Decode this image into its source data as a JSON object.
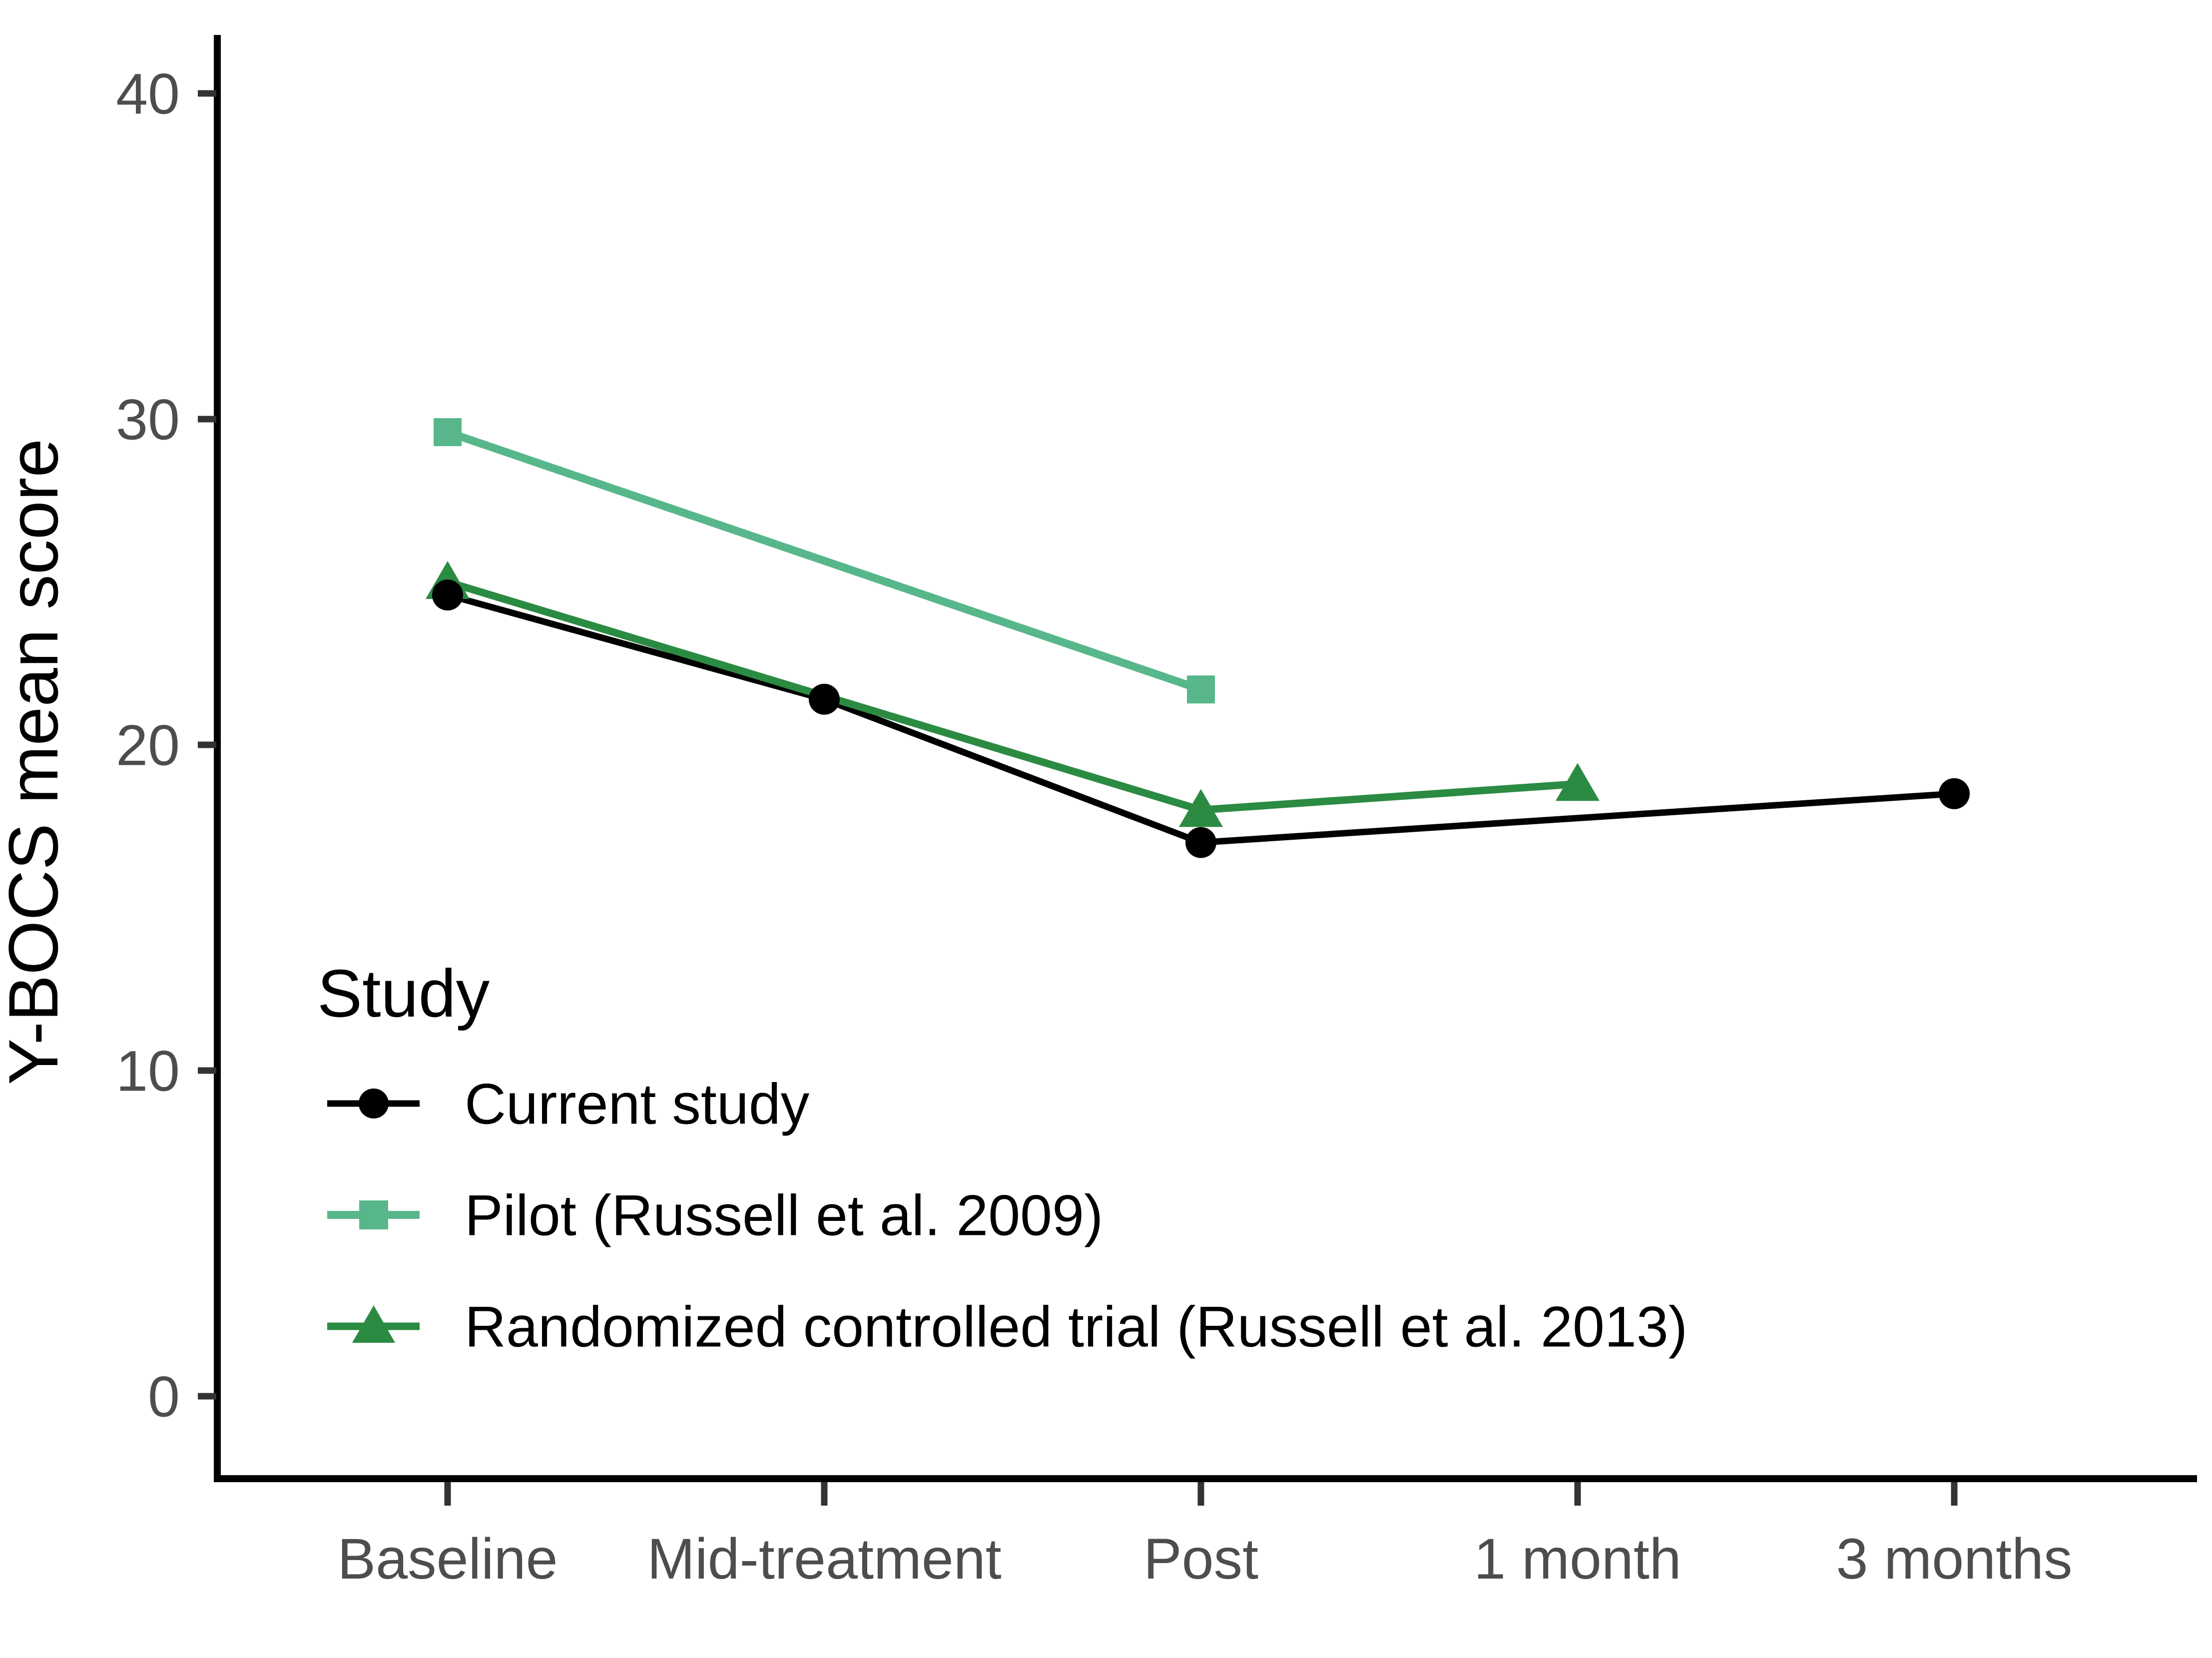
{
  "chart_data": {
    "type": "line",
    "title": "",
    "ylabel": "Y-BOCS mean score",
    "xlabel": "",
    "categories": [
      "Baseline",
      "Mid-treatment",
      "Post",
      "1 month",
      "3 months"
    ],
    "yticks": [
      0,
      10,
      20,
      30,
      40
    ],
    "ylim": [
      0,
      40
    ],
    "grid": false,
    "legend_title": "Study",
    "legend_position": "inside-bottom-left",
    "series": [
      {
        "name": "Current study",
        "marker": "circle",
        "color": "#000000",
        "x": [
          "Baseline",
          "Mid-treatment",
          "Post",
          "3 months"
        ],
        "values": [
          24.6,
          21.4,
          17.0,
          18.5
        ]
      },
      {
        "name": "Pilot (Russell et al. 2009)",
        "marker": "square",
        "color": "#57b78a",
        "x": [
          "Baseline",
          "Post"
        ],
        "values": [
          29.6,
          21.7
        ]
      },
      {
        "name": "Randomized controlled trial (Russell et al. 2013)",
        "marker": "triangle",
        "color": "#2b8b42",
        "x": [
          "Baseline",
          "Post",
          "1 month"
        ],
        "values": [
          25.0,
          18.0,
          18.8
        ]
      }
    ],
    "axis_colors": {
      "tick_label": "#4d4d4d",
      "tick_mark": "#333333",
      "axis_line": "#000000"
    }
  }
}
